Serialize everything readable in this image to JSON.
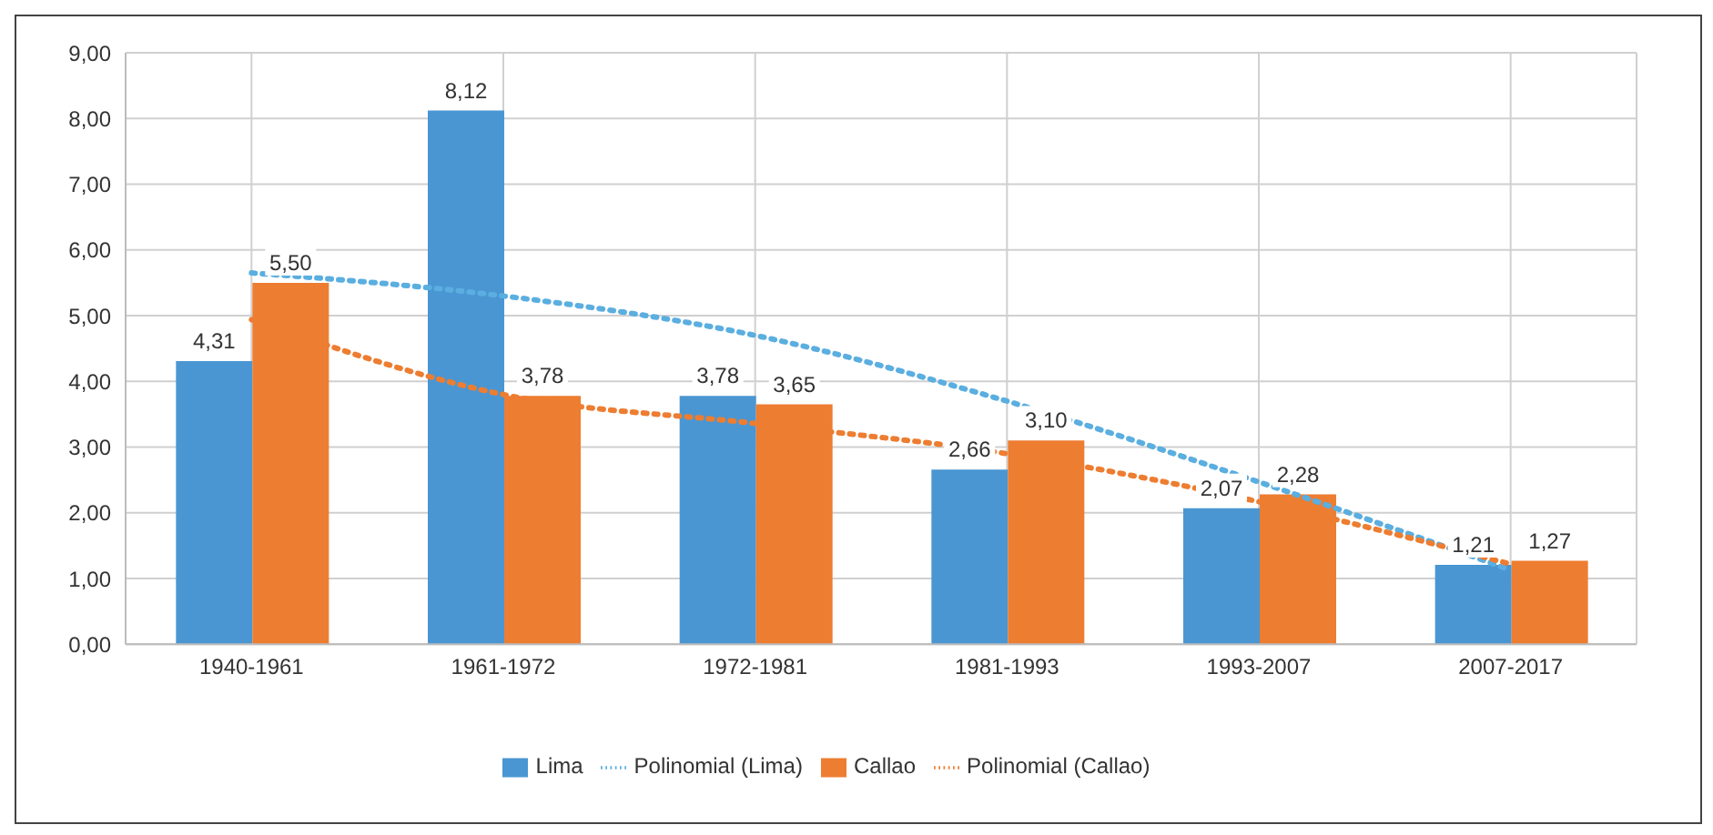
{
  "chart_data": {
    "type": "bar",
    "categories": [
      "1940-1961",
      "1961-1972",
      "1972-1981",
      "1981-1993",
      "1993-2007",
      "2007-2017"
    ],
    "series": [
      {
        "name": "Lima",
        "type": "bar",
        "color": "#4a96d2",
        "values": [
          4.31,
          8.12,
          3.78,
          2.66,
          2.07,
          1.21
        ],
        "value_labels": [
          "4,31",
          "8,12",
          "3,78",
          "2,66",
          "2,07",
          "1,21"
        ]
      },
      {
        "name": "Polinomial (Lima)",
        "type": "line",
        "color": "#5aaee0",
        "line_style": "dotted",
        "marker": "none",
        "values": [
          5.65,
          5.3,
          4.7,
          3.7,
          2.47,
          1.13
        ]
      },
      {
        "name": "Callao",
        "type": "bar",
        "color": "#ed7d31",
        "values": [
          5.5,
          3.78,
          3.65,
          3.1,
          2.28,
          1.27
        ],
        "value_labels": [
          "5,50",
          "3,78",
          "3,65",
          "3,10",
          "2,28",
          "1,27"
        ]
      },
      {
        "name": "Polinomial (Callao)",
        "type": "line",
        "color": "#ed7d31",
        "line_style": "dotted",
        "marker": "none",
        "values": [
          4.94,
          3.8,
          3.36,
          2.9,
          2.17,
          1.22
        ]
      }
    ],
    "ylim": [
      0,
      9
    ],
    "yticks": [
      {
        "value": 0,
        "label": "0,00"
      },
      {
        "value": 1,
        "label": "1,00"
      },
      {
        "value": 2,
        "label": "2,00"
      },
      {
        "value": 3,
        "label": "3,00"
      },
      {
        "value": 4,
        "label": "4,00"
      },
      {
        "value": 5,
        "label": "5,00"
      },
      {
        "value": 6,
        "label": "6,00"
      },
      {
        "value": 7,
        "label": "7,00"
      },
      {
        "value": 8,
        "label": "8,00"
      },
      {
        "value": 9,
        "label": "9,00"
      }
    ],
    "grid": true,
    "legend": "bottom"
  }
}
